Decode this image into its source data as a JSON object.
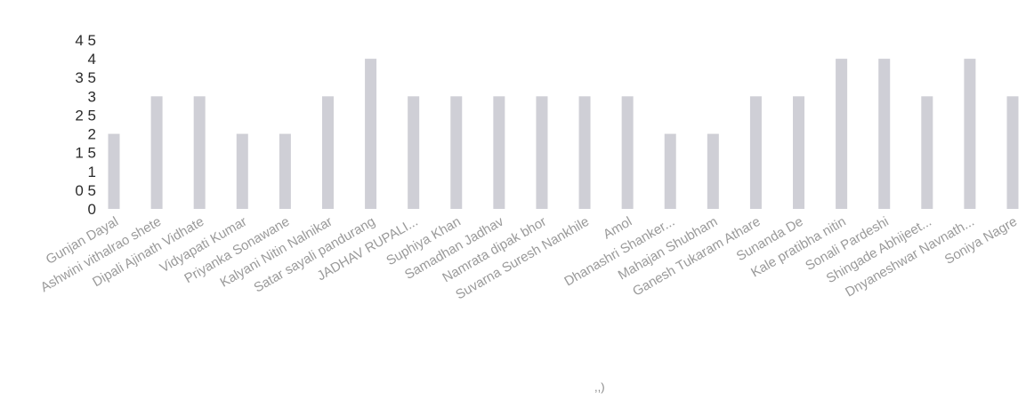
{
  "chart_data": {
    "type": "bar",
    "title": "",
    "xlabel": "",
    "ylabel": "",
    "ylim": [
      0,
      4.5
    ],
    "yticks": [
      "0",
      "0 5",
      "1",
      "1 5",
      "2",
      "2 5",
      "3",
      "3 5",
      "4",
      "4 5"
    ],
    "grid": false,
    "legend": "none",
    "bar_color": "#cfcfd6",
    "categories": [
      "Gunjan Dayal",
      "Ashwini vithalrao shete",
      "Dipali Ajinath Vidhate",
      "Vidyapati Kumar",
      "Priyanka Sonawane",
      "Kalyani Nitin Nalnikar",
      "Satar sayali pandurang",
      "JADHAV RUPALI...",
      "Suphiya Khan",
      "Samadhan Jadhav",
      "Namrata dipak bhor",
      "Suvarna Suresh Nankhile",
      "Amol",
      "Dhanashri Shanker...",
      "Mahajan Shubham",
      "Ganesh Tukaram Athare",
      "Sunanda De",
      "Kale pratibha nitin",
      "Sonali Pardeshi",
      "Shingade Abhijeet...",
      "Dnyaneshwar Navnath...",
      "Soniya Nagre"
    ],
    "values": [
      2,
      3,
      3,
      2,
      2,
      3,
      4,
      3,
      3,
      3,
      3,
      3,
      3,
      2,
      2,
      3,
      3,
      4,
      4,
      3,
      4,
      3
    ],
    "stray_text": ",,)"
  }
}
